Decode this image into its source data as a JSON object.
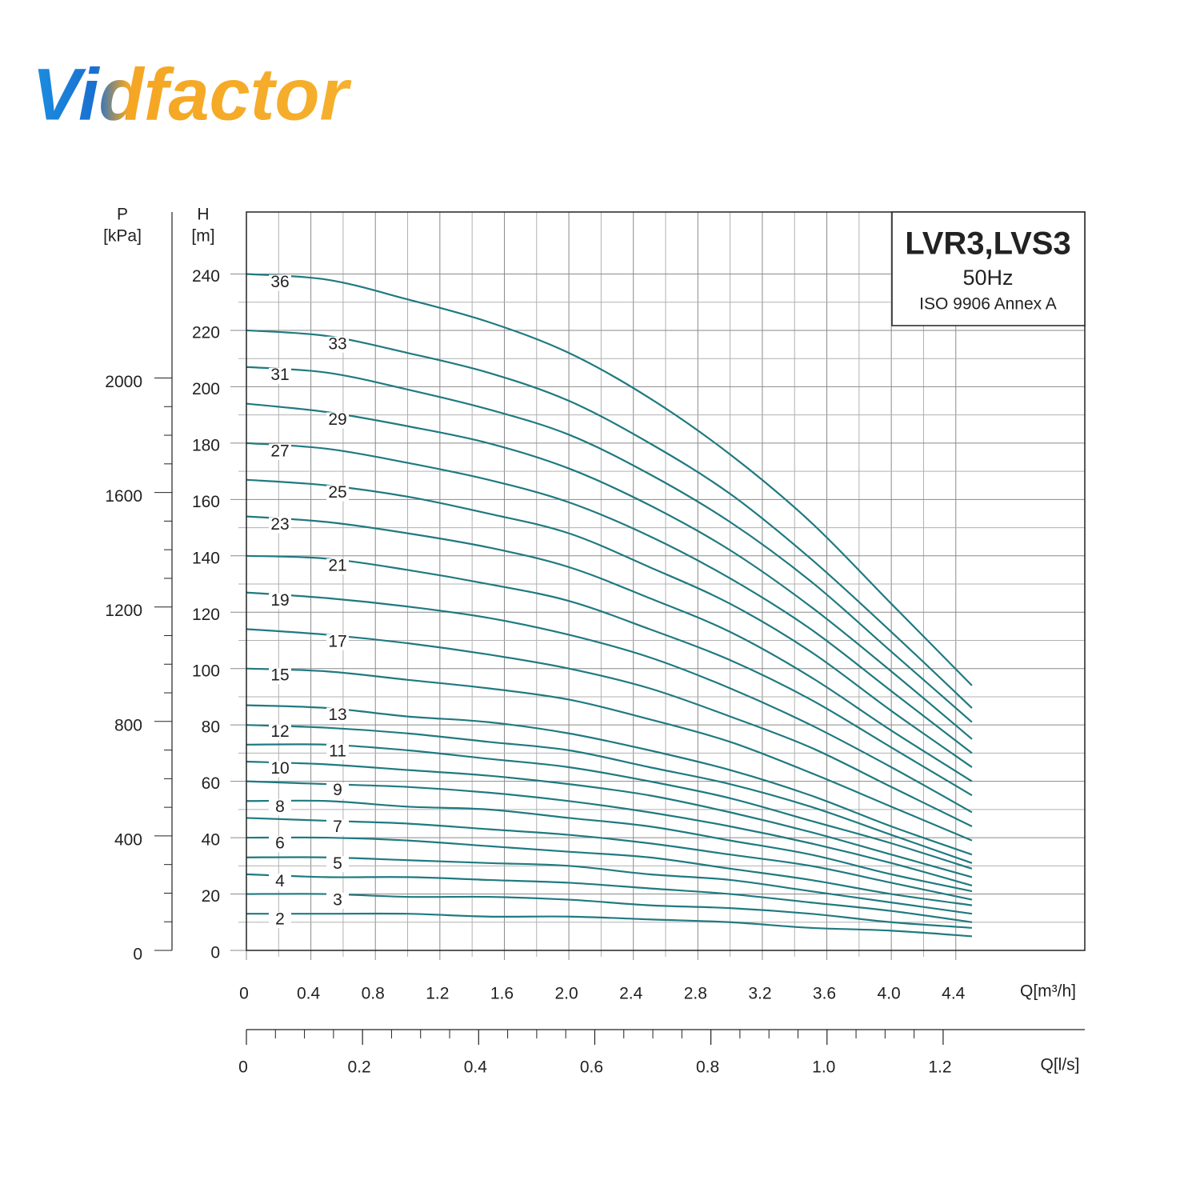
{
  "logo": "Vidfactor",
  "chart_data": {
    "type": "line",
    "title": "LVR3,LVS3",
    "subtitle": "50Hz",
    "note": "ISO 9906 Annex A",
    "ylabel": [
      "H",
      "[m]"
    ],
    "y2label": [
      "P",
      "[kPa]"
    ],
    "xlabel": "Q[m³/h]",
    "x2label": "Q[l/s]",
    "x": [
      0,
      0.5,
      1,
      1.5,
      2,
      2.5,
      3,
      3.5,
      4,
      4.5
    ],
    "xlim": [
      0,
      5.2
    ],
    "xticks": [
      0,
      0.4,
      0.8,
      1.2,
      1.6,
      {
        "value": 2,
        "label": "2.0"
      },
      2.4,
      2.8,
      3.2,
      3.6,
      {
        "value": 4,
        "label": "4.0"
      },
      4.4
    ],
    "x2lim": [
      0,
      1.444
    ],
    "x2ticks": [
      0,
      0.2,
      0.4,
      0.6,
      0.8,
      {
        "value": 1,
        "label": "1.0"
      },
      1.2
    ],
    "ylim": [
      0,
      262
    ],
    "yticks": [
      0,
      20,
      40,
      60,
      80,
      100,
      120,
      140,
      160,
      180,
      200,
      220,
      240
    ],
    "y2lim": [
      0,
      2580
    ],
    "y2ticks": [
      0,
      400,
      800,
      1200,
      1600,
      2000
    ],
    "grid": true,
    "color": "#1f7a80",
    "series": [
      {
        "name": "2",
        "values": [
          13,
          13,
          13,
          12,
          12,
          11,
          10,
          8,
          7,
          5
        ]
      },
      {
        "name": "3",
        "values": [
          20,
          20,
          19,
          19,
          18,
          16,
          15,
          13,
          10,
          8
        ]
      },
      {
        "name": "4",
        "values": [
          27,
          26,
          26,
          25,
          24,
          22,
          20,
          17,
          14,
          10
        ]
      },
      {
        "name": "5",
        "values": [
          33,
          33,
          32,
          31,
          30,
          27,
          25,
          21,
          17,
          13
        ]
      },
      {
        "name": "6",
        "values": [
          40,
          40,
          39,
          37,
          35,
          33,
          29,
          25,
          20,
          16
        ]
      },
      {
        "name": "7",
        "values": [
          47,
          46,
          45,
          43,
          41,
          38,
          34,
          30,
          24,
          18
        ]
      },
      {
        "name": "8",
        "values": [
          53,
          53,
          51,
          50,
          47,
          44,
          39,
          34,
          27,
          21
        ]
      },
      {
        "name": "9",
        "values": [
          60,
          59,
          58,
          56,
          53,
          49,
          44,
          38,
          31,
          23
        ]
      },
      {
        "name": "10",
        "values": [
          67,
          66,
          64,
          62,
          59,
          55,
          49,
          42,
          34,
          26
        ]
      },
      {
        "name": "11",
        "values": [
          73,
          73,
          71,
          68,
          65,
          60,
          54,
          46,
          38,
          29
        ]
      },
      {
        "name": "12",
        "values": [
          80,
          79,
          77,
          74,
          71,
          65,
          59,
          51,
          41,
          31
        ]
      },
      {
        "name": "13",
        "values": [
          87,
          86,
          83,
          81,
          77,
          71,
          64,
          55,
          44,
          34
        ]
      },
      {
        "name": "15",
        "values": [
          100,
          99,
          96,
          93,
          89,
          82,
          74,
          63,
          51,
          39
        ]
      },
      {
        "name": "17",
        "values": [
          114,
          112,
          109,
          105,
          100,
          93,
          83,
          72,
          58,
          44
        ]
      },
      {
        "name": "19",
        "values": [
          127,
          125,
          122,
          118,
          112,
          104,
          93,
          80,
          65,
          49
        ]
      },
      {
        "name": "21",
        "values": [
          140,
          139,
          135,
          130,
          124,
          114,
          103,
          89,
          72,
          55
        ]
      },
      {
        "name": "23",
        "values": [
          154,
          152,
          148,
          143,
          136,
          125,
          113,
          97,
          78,
          60
        ]
      },
      {
        "name": "25",
        "values": [
          167,
          165,
          161,
          155,
          148,
          136,
          123,
          106,
          85,
          65
        ]
      },
      {
        "name": "27",
        "values": [
          180,
          178,
          173,
          167,
          159,
          147,
          132,
          114,
          92,
          70
        ]
      },
      {
        "name": "29",
        "values": [
          194,
          191,
          186,
          180,
          171,
          158,
          142,
          122,
          99,
          75
        ]
      },
      {
        "name": "31",
        "values": [
          207,
          205,
          199,
          192,
          183,
          169,
          152,
          131,
          106,
          81
        ]
      },
      {
        "name": "33",
        "values": [
          220,
          218,
          212,
          205,
          195,
          180,
          162,
          139,
          113,
          86
        ]
      },
      {
        "name": "36",
        "values": [
          240,
          238,
          231,
          223,
          212,
          196,
          176,
          152,
          123,
          94
        ]
      }
    ]
  }
}
